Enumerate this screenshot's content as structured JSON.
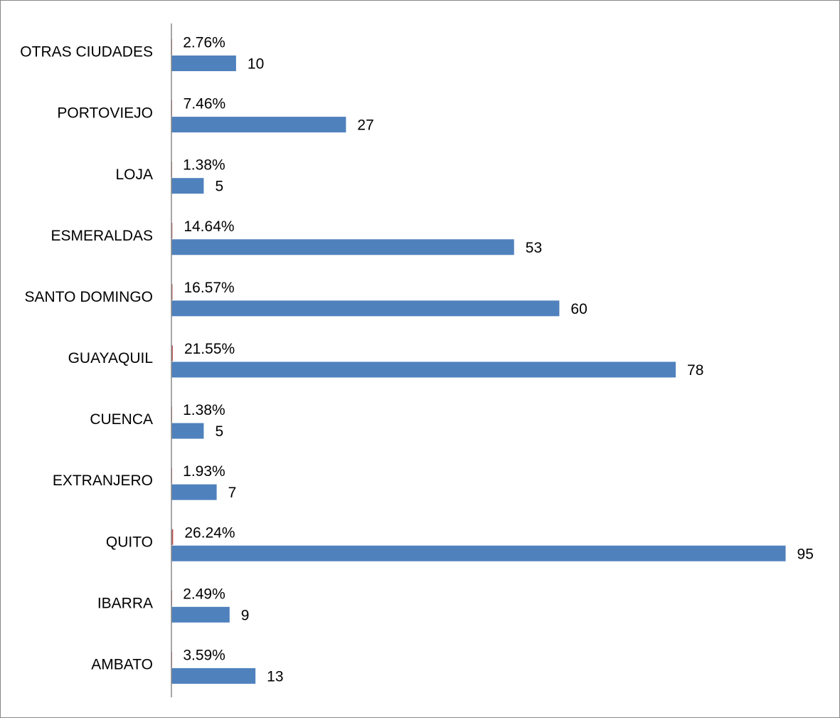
{
  "chart_data": {
    "type": "bar",
    "orientation": "horizontal",
    "categories": [
      "OTRAS CIUDADES",
      "PORTOVIEJO",
      "LOJA ",
      "ESMERALDAS",
      "SANTO DOMINGO",
      "GUAYAQUIL",
      "CUENCA",
      "EXTRANJERO",
      "QUITO",
      "IBARRA",
      "AMBATO"
    ],
    "series": [
      {
        "color": "#c0504d",
        "values": [
          0.0276,
          0.0746,
          0.0138,
          0.1464,
          0.1657,
          0.2155,
          0.0138,
          0.0193,
          0.2624,
          0.0249,
          0.0359
        ],
        "value_labels": [
          "2.76%",
          "7.46%",
          "1.38%",
          "14.64%",
          "16.57%",
          "21.55%",
          "1.38%",
          "1.93%",
          "26.24%",
          "2.49%",
          "3.59%"
        ]
      },
      {
        "color": "#4f81bd",
        "values": [
          10,
          27,
          5,
          53,
          60,
          78,
          5,
          7,
          95,
          9,
          13
        ]
      }
    ],
    "xlim": [
      0,
      100
    ],
    "grid": false
  }
}
